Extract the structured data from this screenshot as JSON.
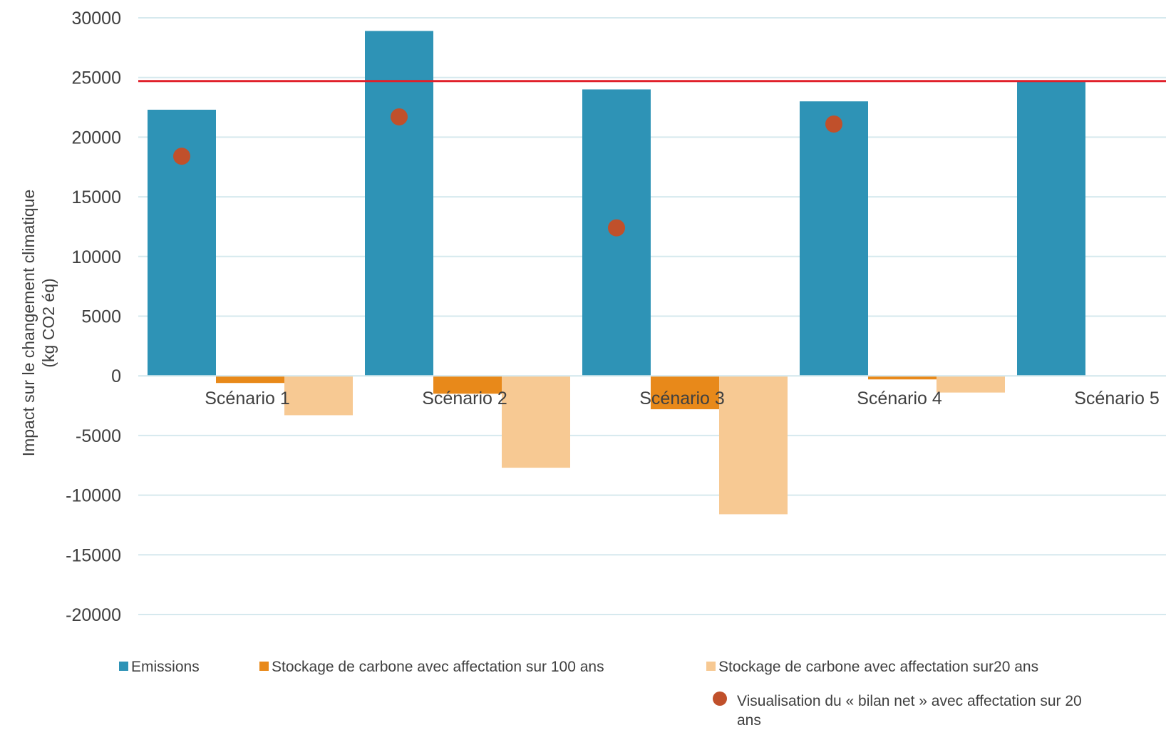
{
  "chart_data": {
    "type": "bar",
    "categories": [
      "Scénario 1",
      "Scénario 2",
      "Scénario 3",
      "Scénario 4",
      "Scénario 5"
    ],
    "series": [
      {
        "name": "Emissions",
        "color": "#2e93b6",
        "values": [
          22300,
          28900,
          24000,
          23000,
          24700
        ]
      },
      {
        "name": "Stockage de carbone avec affectation sur 100 ans",
        "color": "#e8891a",
        "values": [
          -600,
          -1500,
          -2800,
          -300,
          null
        ]
      },
      {
        "name": "Stockage de carbone avec affectation sur20 ans",
        "color": "#f7c993",
        "values": [
          -3300,
          -7700,
          -11600,
          -1400,
          null
        ]
      }
    ],
    "points": {
      "name": "Visualisation du « bilan net » avec affectation sur 20 ans",
      "color": "#c0502b",
      "values": [
        18400,
        21700,
        12400,
        21100,
        null
      ]
    },
    "reference_line": {
      "value": 24700,
      "color": "#e0202a"
    },
    "ylabel": "Impact sur le changement climatique (kg CO2 éq)",
    "ylabel_lines": [
      "Impact sur le changement climatique",
      "(kg CO2 éq)"
    ],
    "yticks": [
      30000,
      25000,
      20000,
      15000,
      10000,
      5000,
      0,
      -5000,
      -10000,
      -15000,
      -20000
    ],
    "ylim": [
      -20000,
      30000
    ],
    "grid": true,
    "legend_position": "bottom"
  }
}
